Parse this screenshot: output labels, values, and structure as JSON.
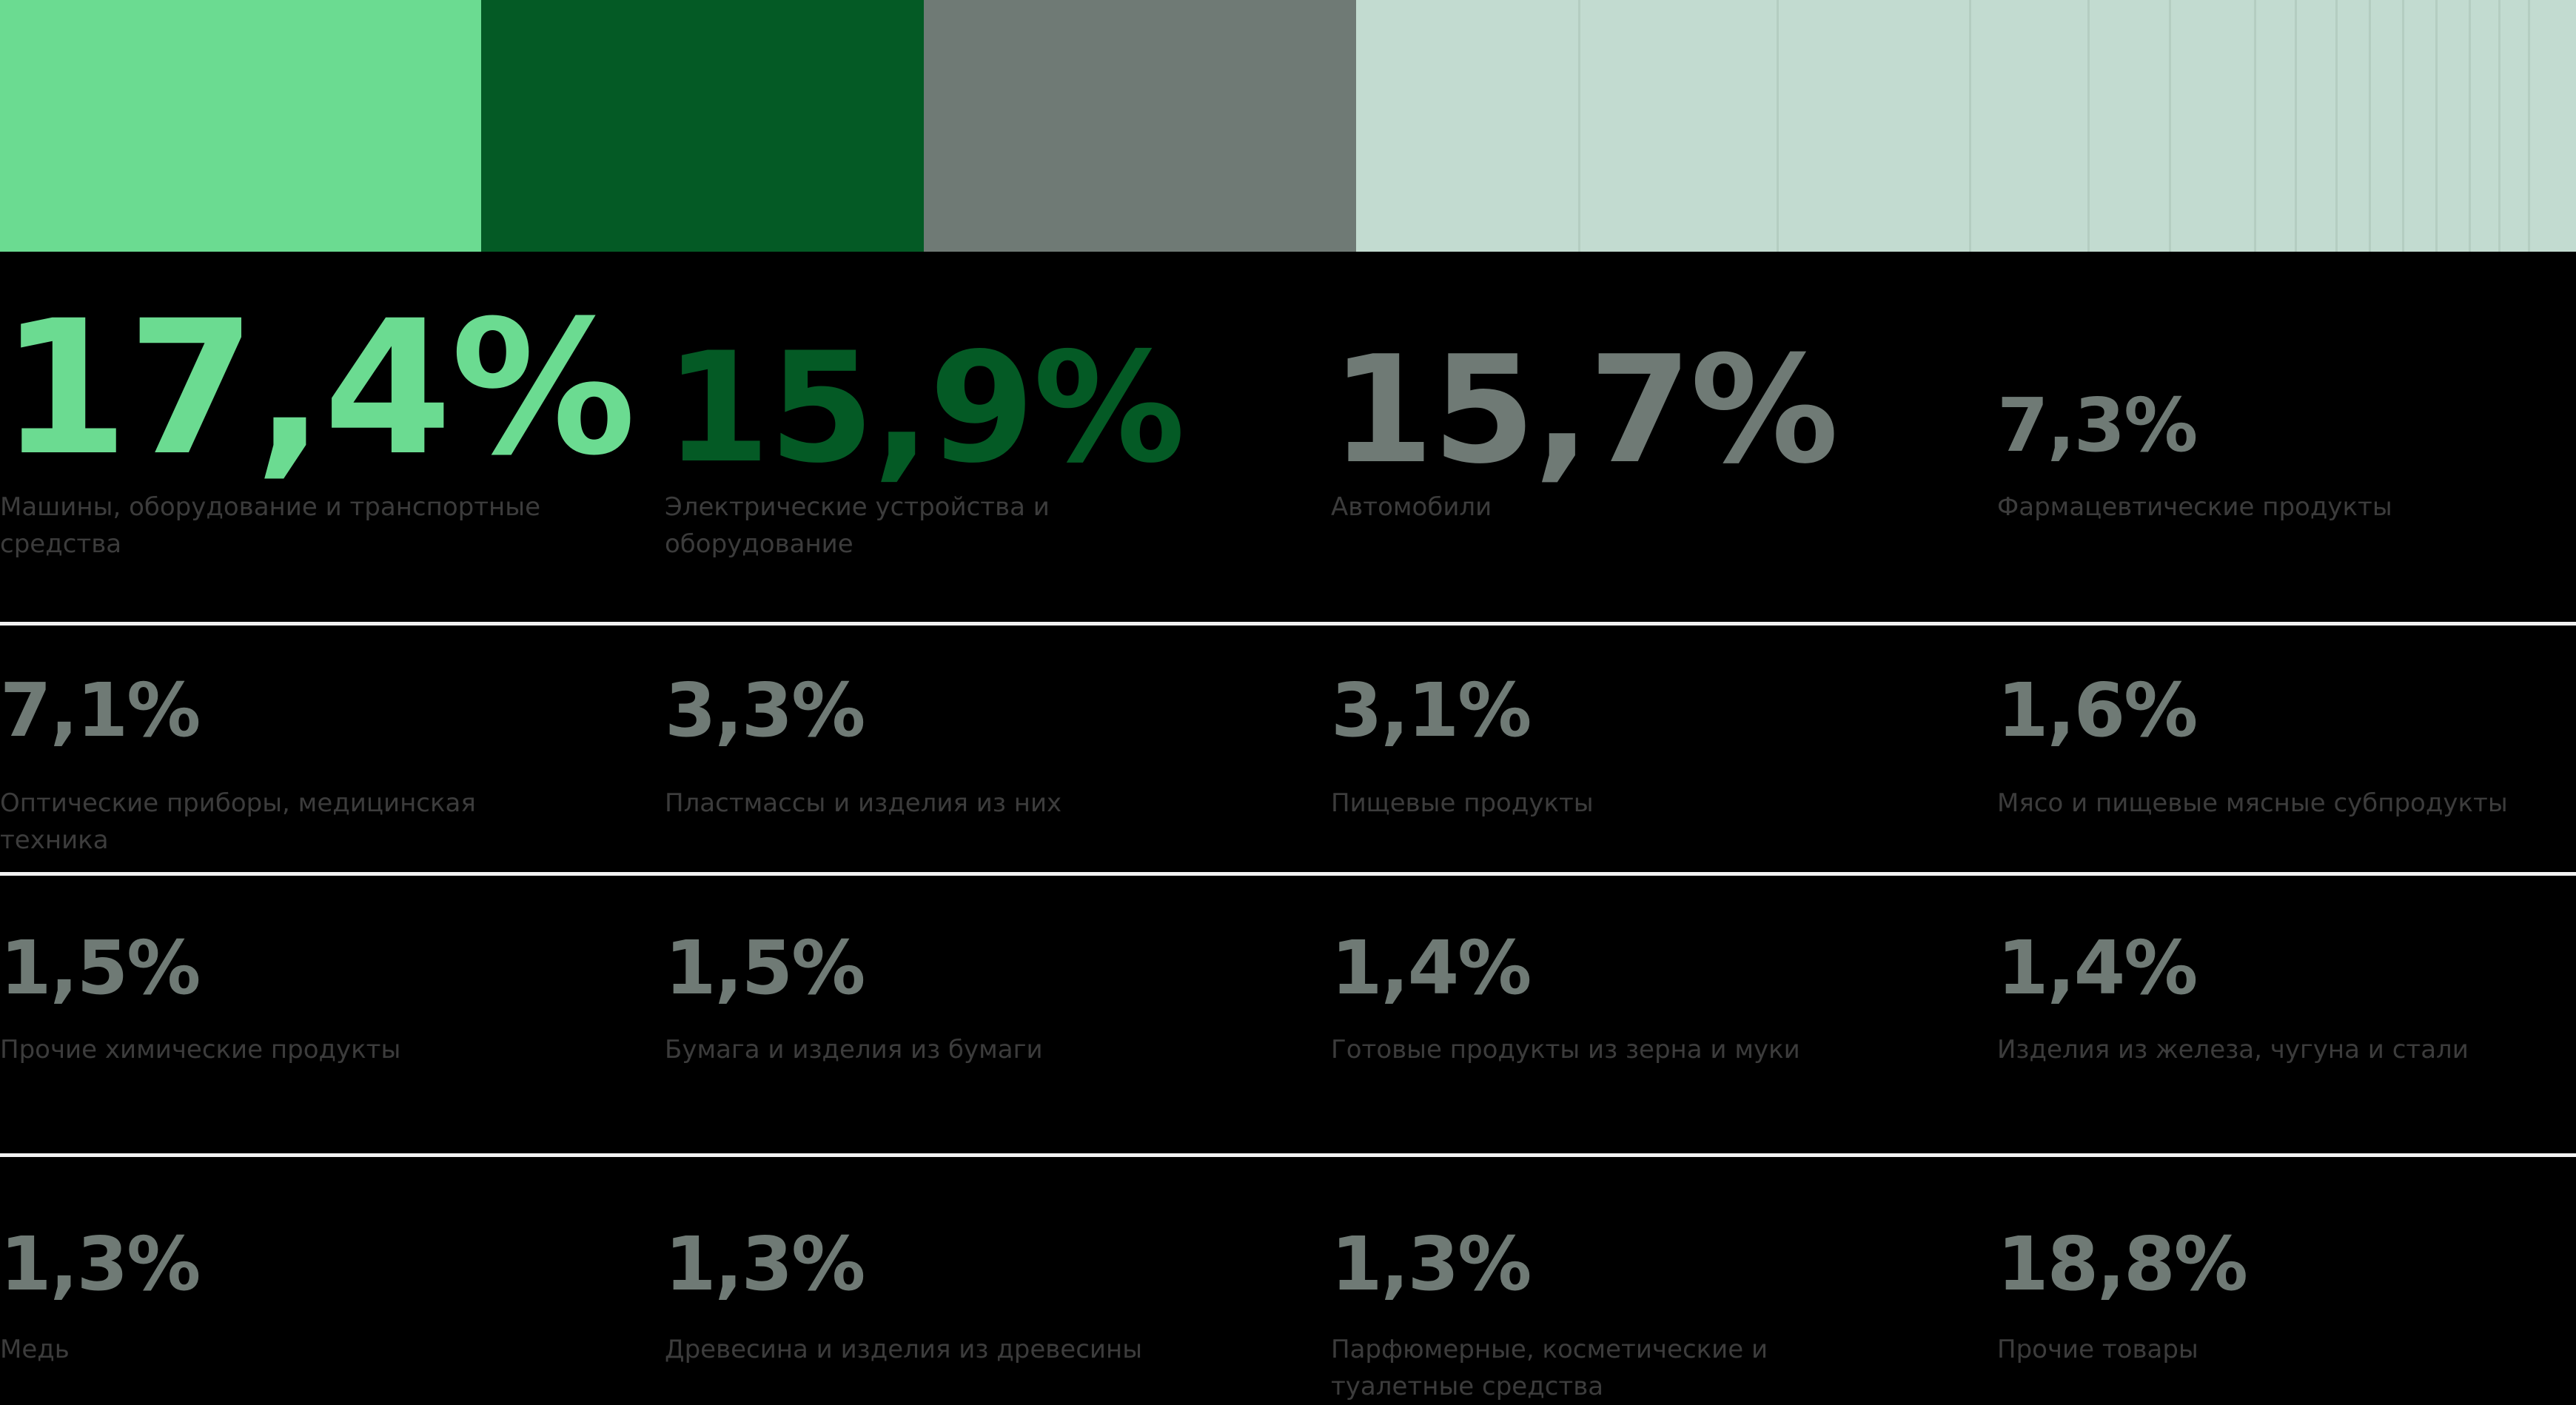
{
  "chart_data": {
    "type": "bar",
    "layout": "stacked-horizontal-strip-with-value-grid",
    "grid": false,
    "colors": {
      "accent_light_green": "#6bdb91",
      "accent_dark_green": "#045a25",
      "accent_gray": "#6f7a75",
      "rest_pale": "#c2dbd0"
    },
    "items": [
      {
        "value_text": "17,4%",
        "value": 17.4,
        "label": "Машины, оборудование и транспортные средства",
        "color": "#6bdb91"
      },
      {
        "value_text": "15,9%",
        "value": 15.9,
        "label": "Электрические устройства и оборудование",
        "color": "#045a25"
      },
      {
        "value_text": "15,7%",
        "value": 15.7,
        "label": "Автомобили",
        "color": "#6f7a75"
      },
      {
        "value_text": "7,3%",
        "value": 7.3,
        "label": "Фармацевтические продукты",
        "color": "#6f7a75"
      },
      {
        "value_text": "7,1%",
        "value": 7.1,
        "label": "Оптические приборы, медицинская техника",
        "color": "#6f7a75"
      },
      {
        "value_text": "3,3%",
        "value": 3.3,
        "label": "Пластмассы и изделия из них",
        "color": "#6f7a75"
      },
      {
        "value_text": "3,1%",
        "value": 3.1,
        "label": "Пищевые продукты",
        "color": "#6f7a75"
      },
      {
        "value_text": "1,6%",
        "value": 1.6,
        "label": "Мясо и пищевые мясные субпродукты",
        "color": "#6f7a75"
      },
      {
        "value_text": "1,5%",
        "value": 1.5,
        "label": "Прочие химические продукты",
        "color": "#6f7a75"
      },
      {
        "value_text": "1,5%",
        "value": 1.5,
        "label": "Бумага и изделия из бумаги",
        "color": "#6f7a75"
      },
      {
        "value_text": "1,4%",
        "value": 1.4,
        "label": "Готовые продукты из зерна и муки",
        "color": "#6f7a75"
      },
      {
        "value_text": "1,4%",
        "value": 1.4,
        "label": "Изделия из железа, чугуна и стали",
        "color": "#6f7a75"
      },
      {
        "value_text": "1,3%",
        "value": 1.3,
        "label": "Медь",
        "color": "#6f7a75"
      },
      {
        "value_text": "1,3%",
        "value": 1.3,
        "label": "Древесина и изделия из древесины",
        "color": "#6f7a75"
      },
      {
        "value_text": "1,3%",
        "value": 1.3,
        "label": "Парфюмерные, косметические и туалетные средства",
        "color": "#6f7a75"
      },
      {
        "value_text": "18,8%",
        "value": 18.8,
        "label": "Прочие товары",
        "color": "#6f7a75"
      }
    ]
  }
}
